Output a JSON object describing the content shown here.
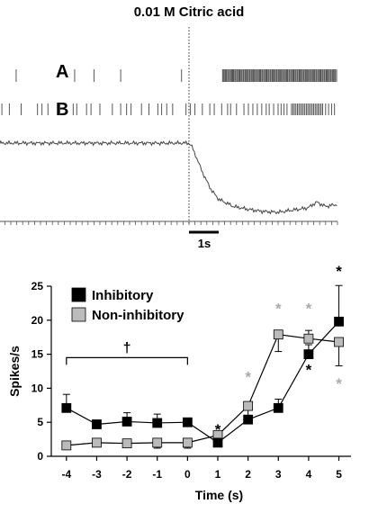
{
  "figure": {
    "title": "0.01 M Citric acid",
    "panel_a": "A",
    "panel_b": "B",
    "scale_bar_label": "1s"
  },
  "chart_data": [
    {
      "type": "raster",
      "rows": [
        {
          "label": "A",
          "spikes_s": [
            -5.82,
            -3.85,
            -3.2,
            -2.3,
            -0.25,
            1.13,
            1.16,
            1.19,
            1.23,
            1.26,
            1.3,
            1.33,
            1.37,
            1.4,
            1.44,
            1.47,
            1.5,
            1.54,
            1.57,
            1.61,
            1.64,
            1.68,
            1.71,
            1.75,
            1.78,
            1.82,
            1.85,
            1.89,
            1.92,
            1.96,
            1.99,
            2.03,
            2.06,
            2.1,
            2.13,
            2.17,
            2.2,
            2.24,
            2.27,
            2.31,
            2.34,
            2.38,
            2.41,
            2.45,
            2.48,
            2.52,
            2.55,
            2.59,
            2.62,
            2.66,
            2.69,
            2.73,
            2.76,
            2.8,
            2.83,
            2.87,
            2.9,
            2.94,
            2.97,
            3.01,
            3.04,
            3.08,
            3.11,
            3.15,
            3.18,
            3.22,
            3.25,
            3.29,
            3.32,
            3.36,
            3.39,
            3.43,
            3.46,
            3.5,
            3.53,
            3.57,
            3.6,
            3.64,
            3.67,
            3.71,
            3.74,
            3.78,
            3.81,
            3.85,
            3.88,
            3.92,
            3.95,
            3.99,
            4.02,
            4.06,
            4.09,
            4.13,
            4.16,
            4.2,
            4.23,
            4.27,
            4.3,
            4.34,
            4.37,
            4.41,
            4.44,
            4.48,
            4.51,
            4.55,
            4.58,
            4.62,
            4.65,
            4.69,
            4.72,
            4.76,
            4.79,
            4.83,
            4.86,
            4.9,
            4.93,
            4.97
          ]
        },
        {
          "label": "B",
          "spikes_s": [
            -6.4,
            -6.3,
            -6.05,
            -5.65,
            -5.1,
            -4.95,
            -4.75,
            -4.35,
            -3.9,
            -3.78,
            -3.45,
            -3.3,
            -3.0,
            -2.58,
            -2.3,
            -2.1,
            -1.95,
            -1.6,
            -1.35,
            -1.05,
            -0.92,
            -0.75,
            -0.55,
            -0.1,
            0.05,
            0.2,
            0.45,
            0.7,
            0.85,
            1.1,
            1.3,
            1.4,
            1.6,
            1.85,
            2.0,
            2.15,
            2.3,
            2.45,
            2.6,
            2.7,
            2.85,
            3.0,
            3.1,
            3.2,
            3.3,
            3.45,
            3.5,
            3.55,
            3.6,
            3.65,
            3.7,
            3.75,
            3.8,
            3.85,
            3.9,
            3.95,
            4.0,
            4.05,
            4.1,
            4.15,
            4.2,
            4.25,
            4.3,
            4.35,
            4.4,
            4.45,
            4.5,
            4.6,
            4.7,
            4.8,
            4.9
          ]
        }
      ],
      "trace": {
        "points": [
          [
            -6.5,
            0.0
          ],
          [
            -3.0,
            0.0
          ],
          [
            0.0,
            0.0
          ],
          [
            0.1,
            -0.05
          ],
          [
            0.25,
            -0.2
          ],
          [
            0.5,
            -0.45
          ],
          [
            0.75,
            -0.65
          ],
          [
            1.0,
            -0.78
          ],
          [
            1.5,
            -0.88
          ],
          [
            2.0,
            -0.92
          ],
          [
            2.5,
            -0.95
          ],
          [
            3.0,
            -0.96
          ],
          [
            3.5,
            -0.93
          ],
          [
            4.0,
            -0.9
          ],
          [
            4.3,
            -0.82
          ],
          [
            4.6,
            -0.88
          ],
          [
            5.0,
            -0.85
          ]
        ]
      },
      "stimulus_onset_s": 0,
      "scale_bar_s": 1
    },
    {
      "type": "line",
      "title": "",
      "xlabel": "Time (s)",
      "ylabel": "Spikes/s",
      "x": [
        -4,
        -3,
        -2,
        -1,
        0,
        1,
        2,
        3,
        4,
        5
      ],
      "xlim": [
        -4.5,
        5.4
      ],
      "ylim": [
        0,
        25
      ],
      "x_ticks": [
        -4,
        -3,
        -2,
        -1,
        0,
        1,
        2,
        3,
        4,
        5
      ],
      "y_ticks": [
        0,
        5,
        10,
        15,
        20,
        25
      ],
      "grid": false,
      "legend": "top-left",
      "series": [
        {
          "name": "Inhibitory",
          "color": "#000000",
          "marker": "square",
          "values": [
            7.1,
            4.7,
            5.1,
            4.9,
            5.0,
            2.0,
            5.4,
            7.1,
            15.0,
            19.8
          ],
          "error": [
            2.0,
            0.5,
            1.3,
            1.3,
            0.4,
            0.5,
            0.5,
            1.3,
            1.4,
            5.3
          ],
          "error_dir": [
            1,
            1,
            1,
            1,
            1,
            -1,
            1,
            1,
            1,
            1
          ]
        },
        {
          "name": "Non-inhibitory",
          "color": "#bbbbbb",
          "marker": "square",
          "values": [
            1.6,
            2.0,
            1.9,
            2.0,
            2.0,
            3.1,
            7.4,
            17.9,
            17.3,
            16.8
          ],
          "error": [
            0.6,
            0.3,
            0.3,
            0.8,
            0.8,
            0.5,
            1.8,
            2.5,
            1.2,
            3.5
          ],
          "error_dir": [
            -1,
            -1,
            -1,
            -1,
            -1,
            -1,
            -1,
            -1,
            1,
            -1
          ]
        }
      ],
      "annotations": [
        {
          "text": "*",
          "x": 1,
          "y": 4.2,
          "color": "#000000"
        },
        {
          "text": "*",
          "x": 2,
          "y": 12.0,
          "color": "#aaaaaa"
        },
        {
          "text": "*",
          "x": 3,
          "y": 22.0,
          "color": "#aaaaaa"
        },
        {
          "text": "*",
          "x": 4,
          "y": 22.0,
          "color": "#aaaaaa"
        },
        {
          "text": "*",
          "x": 4,
          "y": 13.0,
          "color": "#000000"
        },
        {
          "text": "*",
          "x": 5,
          "y": 27.5,
          "color": "#000000"
        },
        {
          "text": "*",
          "x": 5,
          "y": 11.0,
          "color": "#aaaaaa"
        }
      ],
      "bracket": {
        "label": "†",
        "x_from": -4,
        "x_to": 0,
        "y": 14.5
      }
    }
  ]
}
